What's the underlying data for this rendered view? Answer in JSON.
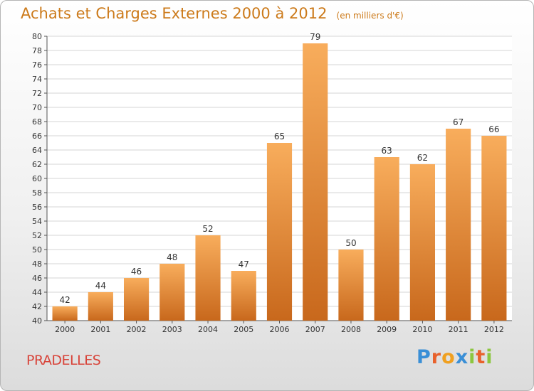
{
  "header": {
    "title": "Achats et Charges Externes 2000 à 2012",
    "unit_note": "(en milliers d'€)"
  },
  "footer": {
    "commune": "PRADELLES",
    "brand_letters": [
      "P",
      "r",
      "o",
      "x",
      "i",
      "t",
      "i"
    ],
    "brand_colors": [
      "#3a8fd6",
      "#e8612c",
      "#f0a020",
      "#3a8fd6",
      "#8cc63f",
      "#e8612c",
      "#8cc63f"
    ]
  },
  "colors": {
    "bar_light": "#f8ad5c",
    "bar_dark": "#c8681c",
    "title": "#cc7a1a",
    "commune": "#d8443a",
    "grid": "#d6d6d6"
  },
  "chart_data": {
    "type": "bar",
    "categories": [
      "2000",
      "2001",
      "2002",
      "2003",
      "2004",
      "2005",
      "2006",
      "2007",
      "2008",
      "2009",
      "2010",
      "2011",
      "2012"
    ],
    "values": [
      42,
      44,
      46,
      48,
      52,
      47,
      65,
      79,
      50,
      63,
      62,
      67,
      66
    ],
    "ylim": [
      40,
      80
    ],
    "yticks": [
      40,
      42,
      44,
      46,
      48,
      50,
      52,
      54,
      56,
      58,
      60,
      62,
      64,
      66,
      68,
      70,
      72,
      74,
      76,
      78,
      80
    ],
    "grid": true,
    "data_labels": true
  }
}
